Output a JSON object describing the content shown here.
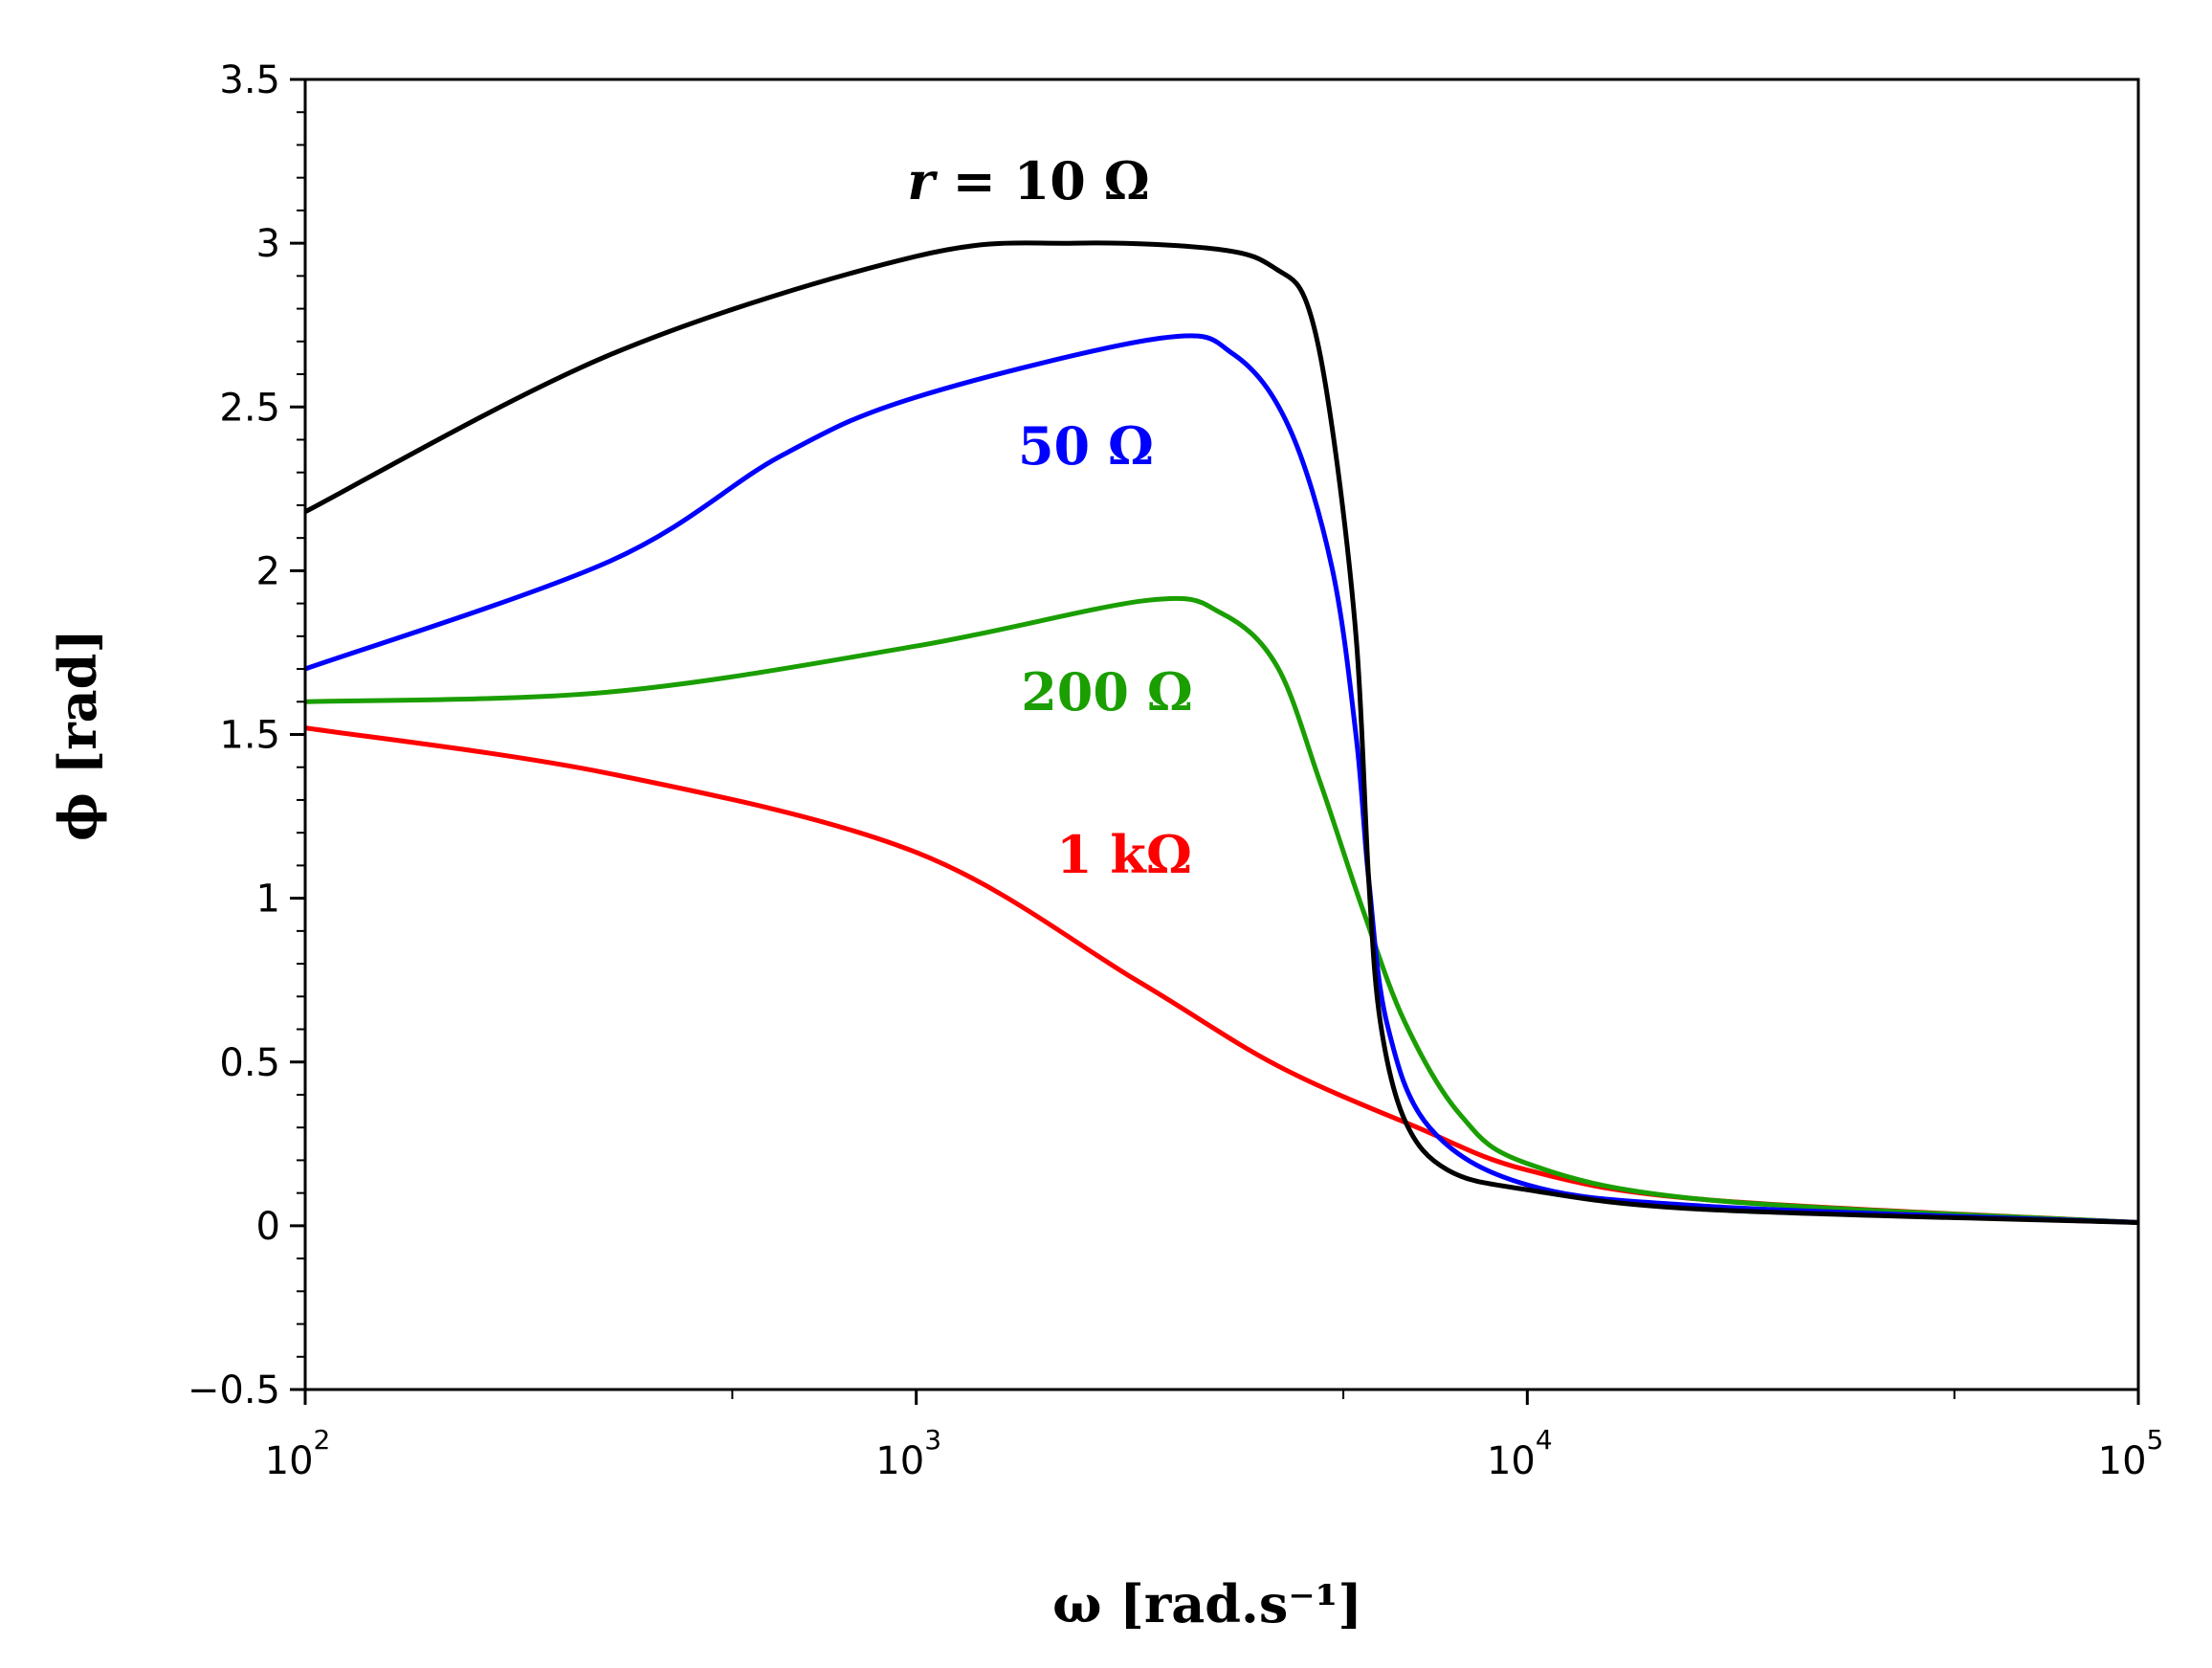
{
  "chart_data": {
    "type": "line",
    "title": "",
    "xlabel": "ω  [rad.s⁻¹]",
    "ylabel": "ϕ  [rad]",
    "xscale": "log",
    "xlim": [
      100,
      100000
    ],
    "ylim": [
      -0.5,
      3.5
    ],
    "grid": false,
    "legend": "none",
    "x_ticks": [
      {
        "base": "10",
        "exp": "2"
      },
      {
        "base": "10",
        "exp": "3"
      },
      {
        "base": "10",
        "exp": "4"
      },
      {
        "base": "10",
        "exp": "5"
      }
    ],
    "y_ticks": [
      "−0.5",
      "0",
      "0.5",
      "1",
      "1.5",
      "2",
      "2.5",
      "3",
      "3.5"
    ],
    "series": [
      {
        "name": "r = 10 Ω",
        "color": "#000000",
        "x": [
          100,
          316,
          1000,
          1820,
          3160,
          3890,
          4370,
          4790,
          5250,
          5500,
          5750,
          6310,
          7410,
          10000,
          19500,
          100000
        ],
        "y": [
          2.18,
          2.66,
          2.96,
          3.0,
          2.98,
          2.92,
          2.81,
          2.44,
          1.79,
          1.06,
          0.62,
          0.32,
          0.17,
          0.11,
          0.05,
          0.01
        ]
      },
      {
        "name": "50 Ω",
        "color": "#0000ff",
        "x": [
          100,
          316,
          600,
          1000,
          2510,
          3310,
          4070,
          4790,
          5250,
          5500,
          5890,
          6920,
          10000,
          19500,
          100000
        ],
        "y": [
          1.7,
          2.03,
          2.35,
          2.53,
          2.71,
          2.66,
          2.44,
          2.01,
          1.49,
          1.06,
          0.62,
          0.3,
          0.125,
          0.06,
          0.01
        ]
      },
      {
        "name": "200 Ω",
        "color": "#1a9e00",
        "x": [
          100,
          316,
          1000,
          2400,
          3160,
          3890,
          4570,
          5370,
          6310,
          7760,
          10000,
          19500,
          100000
        ],
        "y": [
          1.6,
          1.63,
          1.77,
          1.91,
          1.87,
          1.71,
          1.36,
          0.97,
          0.62,
          0.34,
          0.19,
          0.08,
          0.01
        ]
      },
      {
        "name": "1 kΩ",
        "color": "#ff0000",
        "x": [
          100,
          316,
          1000,
          2290,
          3890,
          6610,
          10000,
          19500,
          100000
        ],
        "y": [
          1.52,
          1.38,
          1.14,
          0.75,
          0.49,
          0.3,
          0.17,
          0.08,
          0.01
        ]
      }
    ],
    "annotations": [
      "r = 10 Ω",
      "50 Ω",
      "200 Ω",
      "1 kΩ"
    ]
  }
}
